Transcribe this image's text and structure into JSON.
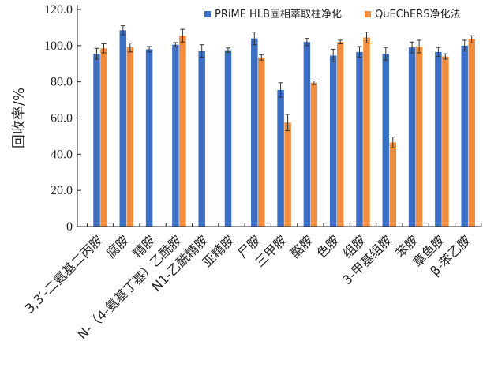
{
  "chart_data": {
    "type": "bar",
    "ylabel": "回收率/%",
    "ylim": [
      0,
      120
    ],
    "yticks": [
      "0",
      "20.0",
      "40.0",
      "60.0",
      "80.0",
      "100.0",
      "120.0"
    ],
    "legend_position": "top-right",
    "categories": [
      "3,3′-二氨基二丙胺",
      "腐胺",
      "精胺",
      "N-（4-氨基丁基）乙酰胺",
      "N1-乙酰精胺",
      "亚精胺",
      "尸胺",
      "三甲胺",
      "酪胺",
      "色胺",
      "组胺",
      "3-甲基组胺",
      "苯胺",
      "章鱼胺",
      "β-苯乙胺"
    ],
    "series": [
      {
        "name": "PRiME HLB固相萃取柱净化",
        "color": "#3a6fc4",
        "values": [
          95.5,
          108.5,
          98.0,
          100.5,
          97.0,
          97.5,
          104.0,
          75.5,
          102.0,
          94.5,
          96.5,
          95.5,
          99.0,
          96.5,
          100.0
        ],
        "errors": [
          3.0,
          2.5,
          1.5,
          1.2,
          3.5,
          1.2,
          3.5,
          4.0,
          2.0,
          3.5,
          3.0,
          3.5,
          3.0,
          2.5,
          3.0
        ]
      },
      {
        "name": "QuEChERS净化法",
        "color": "#f08c3c",
        "values": [
          98.5,
          99.0,
          null,
          105.5,
          null,
          null,
          93.5,
          57.5,
          79.5,
          102.0,
          104.5,
          46.5,
          99.5,
          94.0,
          103.5
        ],
        "errors": [
          2.5,
          2.5,
          null,
          3.5,
          null,
          null,
          1.5,
          4.5,
          1.0,
          1.0,
          3.0,
          3.0,
          3.5,
          1.5,
          2.0
        ]
      }
    ]
  }
}
